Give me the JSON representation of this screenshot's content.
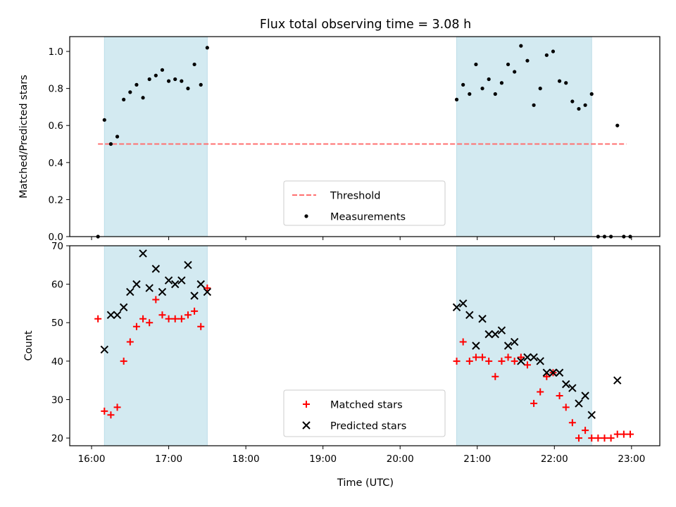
{
  "chart_data": [
    {
      "type": "scatter",
      "title": "Flux total observing time = 3.08 h",
      "ylabel": "Matched/Predicted stars",
      "xlim": [
        "15:43",
        "23:22"
      ],
      "ylim": [
        0,
        1.08
      ],
      "x_tick_labels": [
        "16:00",
        "17:00",
        "18:00",
        "19:00",
        "20:00",
        "21:00",
        "22:00",
        "23:00"
      ],
      "y_ticks": [
        "0.0",
        "0.2",
        "0.4",
        "0.6",
        "0.8",
        "1.0"
      ],
      "shaded_intervals": [
        [
          "16:10",
          "17:30"
        ],
        [
          "20:44",
          "22:29"
        ]
      ],
      "shade_color": "#d3eaf1",
      "threshold": {
        "name": "Threshold",
        "value": 0.5,
        "x_range": [
          "16:05",
          "22:56"
        ],
        "color": "#ff7070",
        "style": "dashed"
      },
      "legend": {
        "entries": [
          "Threshold",
          "Measurements"
        ],
        "placement": "lower center"
      },
      "series": [
        {
          "name": "Measurements",
          "marker": "dot",
          "color": "#000000",
          "points": [
            [
              "16:05",
              0.0
            ],
            [
              "16:10",
              0.63
            ],
            [
              "16:15",
              0.5
            ],
            [
              "16:20",
              0.54
            ],
            [
              "16:25",
              0.74
            ],
            [
              "16:30",
              0.78
            ],
            [
              "16:35",
              0.82
            ],
            [
              "16:40",
              0.75
            ],
            [
              "16:45",
              0.85
            ],
            [
              "16:50",
              0.87
            ],
            [
              "16:55",
              0.9
            ],
            [
              "17:00",
              0.84
            ],
            [
              "17:05",
              0.85
            ],
            [
              "17:10",
              0.84
            ],
            [
              "17:15",
              0.8
            ],
            [
              "17:20",
              0.93
            ],
            [
              "17:25",
              0.82
            ],
            [
              "17:30",
              1.02
            ],
            [
              "20:44",
              0.74
            ],
            [
              "20:49",
              0.82
            ],
            [
              "20:54",
              0.77
            ],
            [
              "20:59",
              0.93
            ],
            [
              "21:04",
              0.8
            ],
            [
              "21:09",
              0.85
            ],
            [
              "21:14",
              0.77
            ],
            [
              "21:19",
              0.83
            ],
            [
              "21:24",
              0.93
            ],
            [
              "21:29",
              0.89
            ],
            [
              "21:34",
              1.03
            ],
            [
              "21:39",
              0.95
            ],
            [
              "21:44",
              0.71
            ],
            [
              "21:49",
              0.8
            ],
            [
              "21:54",
              0.98
            ],
            [
              "21:59",
              1.0
            ],
            [
              "22:04",
              0.84
            ],
            [
              "22:09",
              0.83
            ],
            [
              "22:14",
              0.73
            ],
            [
              "22:19",
              0.69
            ],
            [
              "22:24",
              0.71
            ],
            [
              "22:29",
              0.77
            ],
            [
              "22:34",
              0.0
            ],
            [
              "22:39",
              0.0
            ],
            [
              "22:44",
              0.0
            ],
            [
              "22:49",
              0.6
            ],
            [
              "22:54",
              0.0
            ],
            [
              "22:59",
              0.0
            ]
          ]
        }
      ]
    },
    {
      "type": "scatter",
      "xlabel": "Time (UTC)",
      "ylabel": "Count",
      "xlim": [
        "15:43",
        "23:22"
      ],
      "ylim": [
        18,
        70
      ],
      "x_tick_labels": [
        "16:00",
        "17:00",
        "18:00",
        "19:00",
        "20:00",
        "21:00",
        "22:00",
        "23:00"
      ],
      "y_ticks": [
        "20",
        "30",
        "40",
        "50",
        "60",
        "70"
      ],
      "shaded_intervals": [
        [
          "16:10",
          "17:30"
        ],
        [
          "20:44",
          "22:29"
        ]
      ],
      "shade_color": "#d3eaf1",
      "legend": {
        "entries": [
          "Matched stars",
          "Predicted stars"
        ],
        "placement": "lower center"
      },
      "series": [
        {
          "name": "Matched stars",
          "marker": "plus",
          "color": "#ff0000",
          "points": [
            [
              "16:05",
              51
            ],
            [
              "16:10",
              27
            ],
            [
              "16:15",
              26
            ],
            [
              "16:20",
              28
            ],
            [
              "16:25",
              40
            ],
            [
              "16:30",
              45
            ],
            [
              "16:35",
              49
            ],
            [
              "16:40",
              51
            ],
            [
              "16:45",
              50
            ],
            [
              "16:50",
              56
            ],
            [
              "16:55",
              52
            ],
            [
              "17:00",
              51
            ],
            [
              "17:05",
              51
            ],
            [
              "17:10",
              51
            ],
            [
              "17:15",
              52
            ],
            [
              "17:20",
              53
            ],
            [
              "17:25",
              49
            ],
            [
              "17:30",
              59
            ],
            [
              "20:44",
              40
            ],
            [
              "20:49",
              45
            ],
            [
              "20:54",
              40
            ],
            [
              "20:59",
              41
            ],
            [
              "21:04",
              41
            ],
            [
              "21:09",
              40
            ],
            [
              "21:14",
              36
            ],
            [
              "21:19",
              40
            ],
            [
              "21:24",
              41
            ],
            [
              "21:29",
              40
            ],
            [
              "21:34",
              41
            ],
            [
              "21:39",
              39
            ],
            [
              "21:44",
              29
            ],
            [
              "21:49",
              32
            ],
            [
              "21:54",
              36
            ],
            [
              "21:59",
              37
            ],
            [
              "22:04",
              31
            ],
            [
              "22:09",
              28
            ],
            [
              "22:14",
              24
            ],
            [
              "22:19",
              20
            ],
            [
              "22:24",
              22
            ],
            [
              "22:29",
              20
            ],
            [
              "22:34",
              20
            ],
            [
              "22:39",
              20
            ],
            [
              "22:44",
              20
            ],
            [
              "22:49",
              21
            ],
            [
              "22:54",
              21
            ],
            [
              "22:59",
              21
            ]
          ]
        },
        {
          "name": "Predicted stars",
          "marker": "x",
          "color": "#000000",
          "points": [
            [
              "16:10",
              43
            ],
            [
              "16:15",
              52
            ],
            [
              "16:20",
              52
            ],
            [
              "16:25",
              54
            ],
            [
              "16:30",
              58
            ],
            [
              "16:35",
              60
            ],
            [
              "16:40",
              68
            ],
            [
              "16:45",
              59
            ],
            [
              "16:50",
              64
            ],
            [
              "16:55",
              58
            ],
            [
              "17:00",
              61
            ],
            [
              "17:05",
              60
            ],
            [
              "17:10",
              61
            ],
            [
              "17:15",
              65
            ],
            [
              "17:20",
              57
            ],
            [
              "17:25",
              60
            ],
            [
              "17:30",
              58
            ],
            [
              "20:44",
              54
            ],
            [
              "20:49",
              55
            ],
            [
              "20:54",
              52
            ],
            [
              "20:59",
              44
            ],
            [
              "21:04",
              51
            ],
            [
              "21:09",
              47
            ],
            [
              "21:14",
              47
            ],
            [
              "21:19",
              48
            ],
            [
              "21:24",
              44
            ],
            [
              "21:29",
              45
            ],
            [
              "21:34",
              40
            ],
            [
              "21:39",
              41
            ],
            [
              "21:44",
              41
            ],
            [
              "21:49",
              40
            ],
            [
              "21:54",
              37
            ],
            [
              "21:59",
              37
            ],
            [
              "22:04",
              37
            ],
            [
              "22:09",
              34
            ],
            [
              "22:14",
              33
            ],
            [
              "22:19",
              29
            ],
            [
              "22:24",
              31
            ],
            [
              "22:29",
              26
            ],
            [
              "22:49",
              35
            ]
          ]
        }
      ]
    }
  ]
}
